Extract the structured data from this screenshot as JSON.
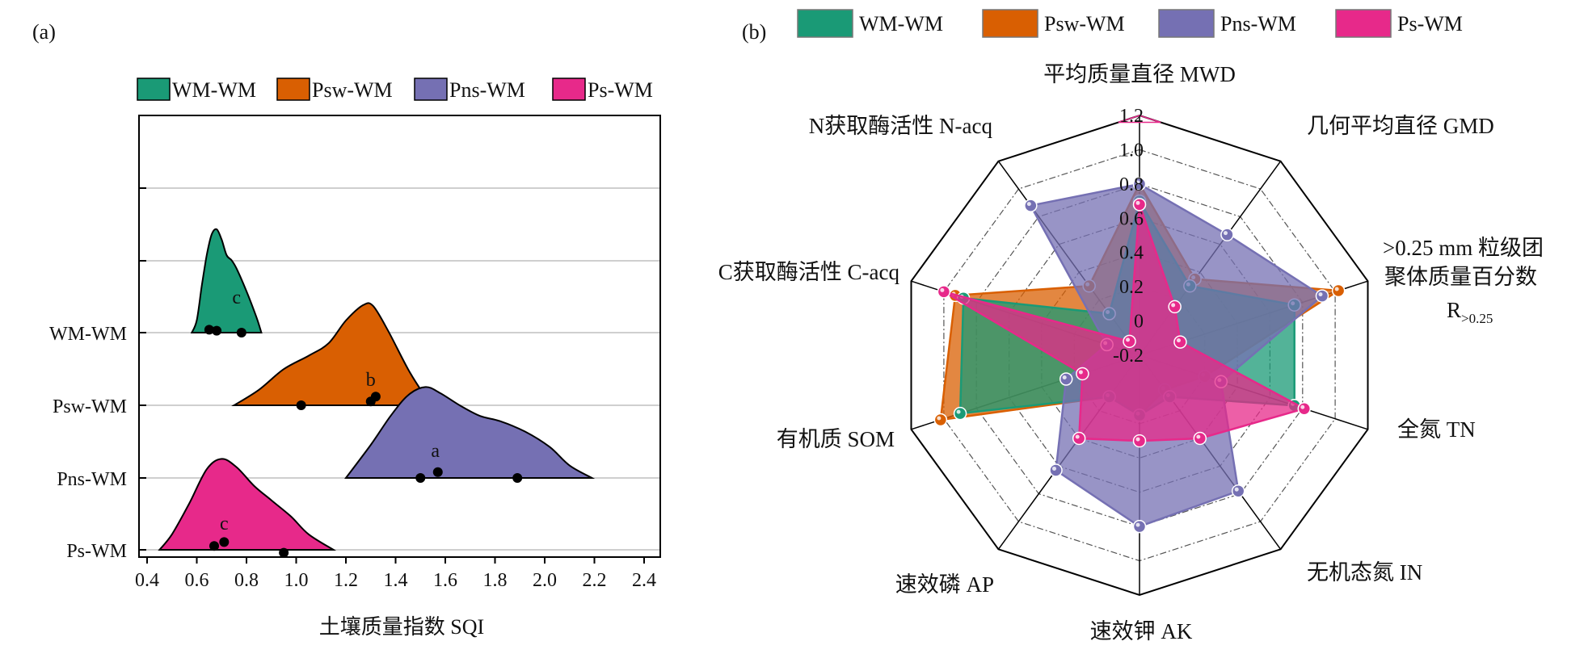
{
  "panel_a": {
    "label": "(a)",
    "xlabel": "土壤质量指数 SQI",
    "legend": [
      {
        "name": "WM-WM",
        "color": "#1a9a76"
      },
      {
        "name": "Psw-WM",
        "color": "#d95f02"
      },
      {
        "name": "Pns-WM",
        "color": "#7570b3"
      },
      {
        "name": "Ps-WM",
        "color": "#e7298a"
      }
    ]
  },
  "panel_b": {
    "label": "(b)",
    "legend": [
      {
        "name": "WM-WM",
        "color": "#1a9a76"
      },
      {
        "name": "Psw-WM",
        "color": "#d95f02"
      },
      {
        "name": "Pns-WM",
        "color": "#7570b3"
      },
      {
        "name": "Ps-WM",
        "color": "#e7298a"
      }
    ]
  },
  "chart_data": [
    {
      "type": "area",
      "subtype": "ridgeline density with points",
      "xlabel": "土壤质量指数 SQI",
      "xlim": [
        0.4,
        2.4
      ],
      "xticks": [
        0.4,
        0.6,
        0.8,
        1.0,
        1.2,
        1.4,
        1.6,
        1.8,
        2.0,
        2.2,
        2.4
      ],
      "xtick_labels": [
        "0.4",
        "0.6",
        "0.8",
        "1.0",
        "1.2",
        "1.4",
        "1.6",
        "1.8",
        "2.0",
        "2.2",
        "2.4"
      ],
      "categories": [
        "WM-WM",
        "Psw-WM",
        "Pns-WM",
        "Ps-WM"
      ],
      "series": [
        {
          "name": "WM-WM",
          "color": "#1a9a76",
          "letter": "c",
          "points": [
            0.65,
            0.68,
            0.78
          ],
          "points_y": [
            0.3,
            0.2,
            0.0
          ],
          "density": [
            [
              0.58,
              0
            ],
            [
              0.6,
              0.12
            ],
            [
              0.62,
              0.45
            ],
            [
              0.64,
              0.75
            ],
            [
              0.66,
              0.95
            ],
            [
              0.68,
              1.0
            ],
            [
              0.7,
              0.9
            ],
            [
              0.72,
              0.75
            ],
            [
              0.74,
              0.7
            ],
            [
              0.76,
              0.62
            ],
            [
              0.8,
              0.4
            ],
            [
              0.84,
              0.15
            ],
            [
              0.86,
              0
            ]
          ]
        },
        {
          "name": "Psw-WM",
          "color": "#d95f02",
          "letter": "b",
          "points": [
            1.02,
            1.3,
            1.32
          ],
          "points_y": [
            0.0,
            0.4,
            0.9
          ],
          "density": [
            [
              0.75,
              0
            ],
            [
              0.85,
              0.15
            ],
            [
              0.95,
              0.35
            ],
            [
              1.05,
              0.48
            ],
            [
              1.13,
              0.6
            ],
            [
              1.2,
              0.82
            ],
            [
              1.27,
              0.97
            ],
            [
              1.31,
              0.96
            ],
            [
              1.37,
              0.72
            ],
            [
              1.45,
              0.35
            ],
            [
              1.51,
              0.12
            ],
            [
              1.55,
              0
            ]
          ]
        },
        {
          "name": "Pns-WM",
          "color": "#7570b3",
          "letter": "a",
          "points": [
            1.5,
            1.57,
            1.89
          ],
          "points_y": [
            0.0,
            0.6,
            0.0
          ],
          "density": [
            [
              1.2,
              0
            ],
            [
              1.3,
              0.32
            ],
            [
              1.38,
              0.6
            ],
            [
              1.45,
              0.8
            ],
            [
              1.52,
              0.88
            ],
            [
              1.58,
              0.82
            ],
            [
              1.66,
              0.7
            ],
            [
              1.74,
              0.6
            ],
            [
              1.82,
              0.55
            ],
            [
              1.92,
              0.45
            ],
            [
              2.02,
              0.3
            ],
            [
              2.1,
              0.12
            ],
            [
              2.19,
              0
            ]
          ]
        },
        {
          "name": "Ps-WM",
          "color": "#e7298a",
          "letter": "c",
          "points": [
            0.67,
            0.71,
            0.95
          ],
          "points_y": [
            0.4,
            0.8,
            -0.3
          ],
          "density": [
            [
              0.45,
              0
            ],
            [
              0.5,
              0.15
            ],
            [
              0.57,
              0.45
            ],
            [
              0.64,
              0.78
            ],
            [
              0.7,
              0.88
            ],
            [
              0.76,
              0.8
            ],
            [
              0.83,
              0.62
            ],
            [
              0.9,
              0.48
            ],
            [
              0.98,
              0.32
            ],
            [
              1.05,
              0.15
            ],
            [
              1.15,
              0
            ]
          ]
        }
      ]
    },
    {
      "type": "radar",
      "rlim": [
        -0.2,
        1.2
      ],
      "rticks": [
        -0.2,
        0,
        0.2,
        0.4,
        0.6,
        0.8,
        1.0,
        1.2
      ],
      "rtick_labels": [
        "-0.2",
        "0",
        "0.2",
        "0.4",
        "0.6",
        "0.8",
        "1.0",
        "1.2"
      ],
      "axes": [
        {
          "name": "平均质量直径 MWD"
        },
        {
          "name": "几何平均直径 GMD"
        },
        {
          "lines": [
            ">0.25 mm 粒级团",
            "聚体质量百分数"
          ],
          "symbol": "R",
          "subscript": ">0.25"
        },
        {
          "name": "全氮 TN"
        },
        {
          "name": "无机态氮 IN"
        },
        {
          "name": "速效钾 AK"
        },
        {
          "name": "速效磷 AP"
        },
        {
          "name": "有机质 SOM"
        },
        {
          "name": "C获取酶活性 C-acq"
        },
        {
          "name": "N获取酶活性 N-acq"
        }
      ],
      "series": [
        {
          "name": "Psw-WM",
          "color": "#d95f02",
          "values": [
            0.8,
            0.35,
            1.02,
            0.2,
            0.05,
            0.15,
            0.1,
            1.02,
            0.93,
            0.3
          ]
        },
        {
          "name": "WM-WM",
          "color": "#1a9a76",
          "values": [
            0.7,
            0.3,
            0.75,
            0.75,
            0.1,
            0.15,
            0.1,
            0.9,
            0.88,
            0.1
          ]
        },
        {
          "name": "Pns-WM",
          "color": "#7570b3",
          "values": [
            0.8,
            0.67,
            0.92,
            0.3,
            0.78,
            0.8,
            0.63,
            0.25,
            0.0,
            0.88
          ]
        },
        {
          "name": "Ps-WM",
          "color": "#e7298a",
          "values": [
            0.68,
            0.15,
            0.05,
            0.81,
            0.4,
            0.3,
            0.4,
            0.15,
            1.0,
            -0.1
          ]
        }
      ],
      "outer_ring_color": "#e7298a"
    }
  ]
}
